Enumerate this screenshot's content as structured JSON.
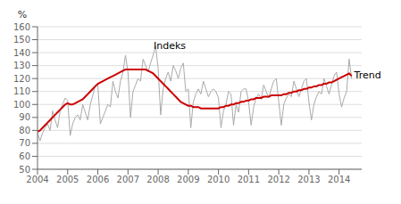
{
  "chart_data": {
    "type": "line",
    "ylabel": "%",
    "x": [
      2004.0,
      2004.0833333333333,
      2004.1666666666667,
      2004.25,
      2004.3333333333333,
      2004.4166666666667,
      2004.5,
      2004.5833333333333,
      2004.6666666666667,
      2004.75,
      2004.8333333333333,
      2004.9166666666667,
      2005.0,
      2005.0833333333333,
      2005.1666666666667,
      2005.25,
      2005.3333333333333,
      2005.4166666666667,
      2005.5,
      2005.5833333333333,
      2005.6666666666667,
      2005.75,
      2005.8333333333333,
      2005.9166666666667,
      2006.0,
      2006.0833333333333,
      2006.1666666666667,
      2006.25,
      2006.3333333333333,
      2006.4166666666667,
      2006.5,
      2006.5833333333333,
      2006.6666666666667,
      2006.75,
      2006.8333333333333,
      2006.9166666666667,
      2007.0,
      2007.0833333333333,
      2007.1666666666667,
      2007.25,
      2007.3333333333333,
      2007.4166666666667,
      2007.5,
      2007.5833333333333,
      2007.6666666666667,
      2007.75,
      2007.8333333333333,
      2007.9166666666667,
      2008.0,
      2008.0833333333333,
      2008.1666666666667,
      2008.25,
      2008.3333333333333,
      2008.4166666666667,
      2008.5,
      2008.5833333333333,
      2008.6666666666667,
      2008.75,
      2008.8333333333333,
      2008.9166666666667,
      2009.0,
      2009.0833333333333,
      2009.1666666666667,
      2009.25,
      2009.3333333333333,
      2009.4166666666667,
      2009.5,
      2009.5833333333333,
      2009.6666666666667,
      2009.75,
      2009.8333333333333,
      2009.9166666666667,
      2010.0,
      2010.0833333333333,
      2010.1666666666667,
      2010.25,
      2010.3333333333333,
      2010.4166666666667,
      2010.5,
      2010.5833333333333,
      2010.6666666666667,
      2010.75,
      2010.8333333333333,
      2010.9166666666667,
      2011.0,
      2011.0833333333333,
      2011.1666666666667,
      2011.25,
      2011.3333333333333,
      2011.4166666666667,
      2011.5,
      2011.5833333333333,
      2011.6666666666667,
      2011.75,
      2011.8333333333333,
      2011.9166666666667,
      2012.0,
      2012.0833333333333,
      2012.1666666666667,
      2012.25,
      2012.3333333333333,
      2012.4166666666667,
      2012.5,
      2012.5833333333333,
      2012.6666666666667,
      2012.75,
      2012.8333333333333,
      2012.9166666666667,
      2013.0,
      2013.0833333333333,
      2013.1666666666667,
      2013.25,
      2013.3333333333333,
      2013.4166666666667,
      2013.5,
      2013.5833333333333,
      2013.6666666666667,
      2013.75,
      2013.8333333333333,
      2013.9166666666667,
      2014.0,
      2014.0833333333333,
      2014.1666666666667,
      2014.25,
      2014.3333333333333,
      2014.4166666666667
    ],
    "series": [
      {
        "color": "#aaaaaa",
        "values": [
          78,
          72,
          78,
          82,
          85,
          80,
          95,
          88,
          82,
          95,
          100,
          105,
          103,
          76,
          85,
          90,
          92,
          88,
          100,
          94,
          88,
          100,
          107,
          115,
          115,
          85,
          90,
          95,
          100,
          98,
          118,
          110,
          105,
          118,
          125,
          138,
          125,
          90,
          110,
          115,
          120,
          118,
          135,
          130,
          125,
          132,
          138,
          145,
          128,
          92,
          112,
          120,
          125,
          118,
          130,
          126,
          120,
          128,
          132,
          110,
          112,
          82,
          102,
          108,
          112,
          108,
          118,
          112,
          106,
          110,
          112,
          110,
          105,
          82,
          95,
          100,
          110,
          108,
          84,
          100,
          94,
          110,
          112,
          112,
          102,
          84,
          98,
          105,
          108,
          104,
          115,
          110,
          105,
          112,
          118,
          120,
          102,
          84,
          100,
          105,
          108,
          106,
          118,
          112,
          106,
          112,
          118,
          120,
          102,
          88,
          100,
          106,
          110,
          108,
          120,
          114,
          108,
          115,
          122,
          125,
          108,
          98,
          105,
          110,
          135,
          120
        ]
      },
      {
        "color": "#cc0000",
        "values": [
          79,
          80,
          82,
          84,
          86,
          88,
          90,
          92,
          94,
          96,
          98,
          100,
          101,
          100,
          100,
          101,
          102,
          103,
          104,
          106,
          108,
          110,
          112,
          114,
          116,
          117,
          118,
          119,
          120,
          121,
          122,
          123,
          124,
          125,
          126,
          127,
          127,
          127,
          127,
          127,
          127,
          127,
          127,
          127,
          126,
          125,
          124,
          122,
          120,
          118,
          116,
          114,
          112,
          110,
          108,
          106,
          104,
          102,
          101,
          100,
          99,
          99,
          98,
          98,
          98,
          97,
          97,
          97,
          97,
          97,
          97,
          97,
          97,
          98,
          98,
          99,
          99,
          100,
          100,
          101,
          101,
          102,
          102,
          103,
          103,
          104,
          104,
          105,
          105,
          105,
          106,
          106,
          106,
          107,
          107,
          107,
          107,
          107,
          108,
          108,
          109,
          109,
          110,
          110,
          111,
          111,
          112,
          112,
          113,
          113,
          114,
          114,
          115,
          115,
          116,
          116,
          117,
          117,
          118,
          119,
          120,
          121,
          122,
          123,
          124,
          122
        ]
      }
    ],
    "xlim": [
      2004.0,
      2014.75
    ],
    "xticks": [
      2004,
      2005,
      2006,
      2007,
      2008,
      2009,
      2010,
      2011,
      2012,
      2013,
      2014
    ],
    "ylim": [
      50,
      160
    ],
    "yticks": [
      50,
      60,
      70,
      80,
      90,
      100,
      110,
      120,
      130,
      140,
      150,
      160
    ],
    "grid": true,
    "annotations": [
      {
        "text": "Indeks",
        "x": 2007.85,
        "y": 143
      },
      {
        "text": "Trend",
        "x": 2014.5,
        "y": 122
      }
    ]
  }
}
